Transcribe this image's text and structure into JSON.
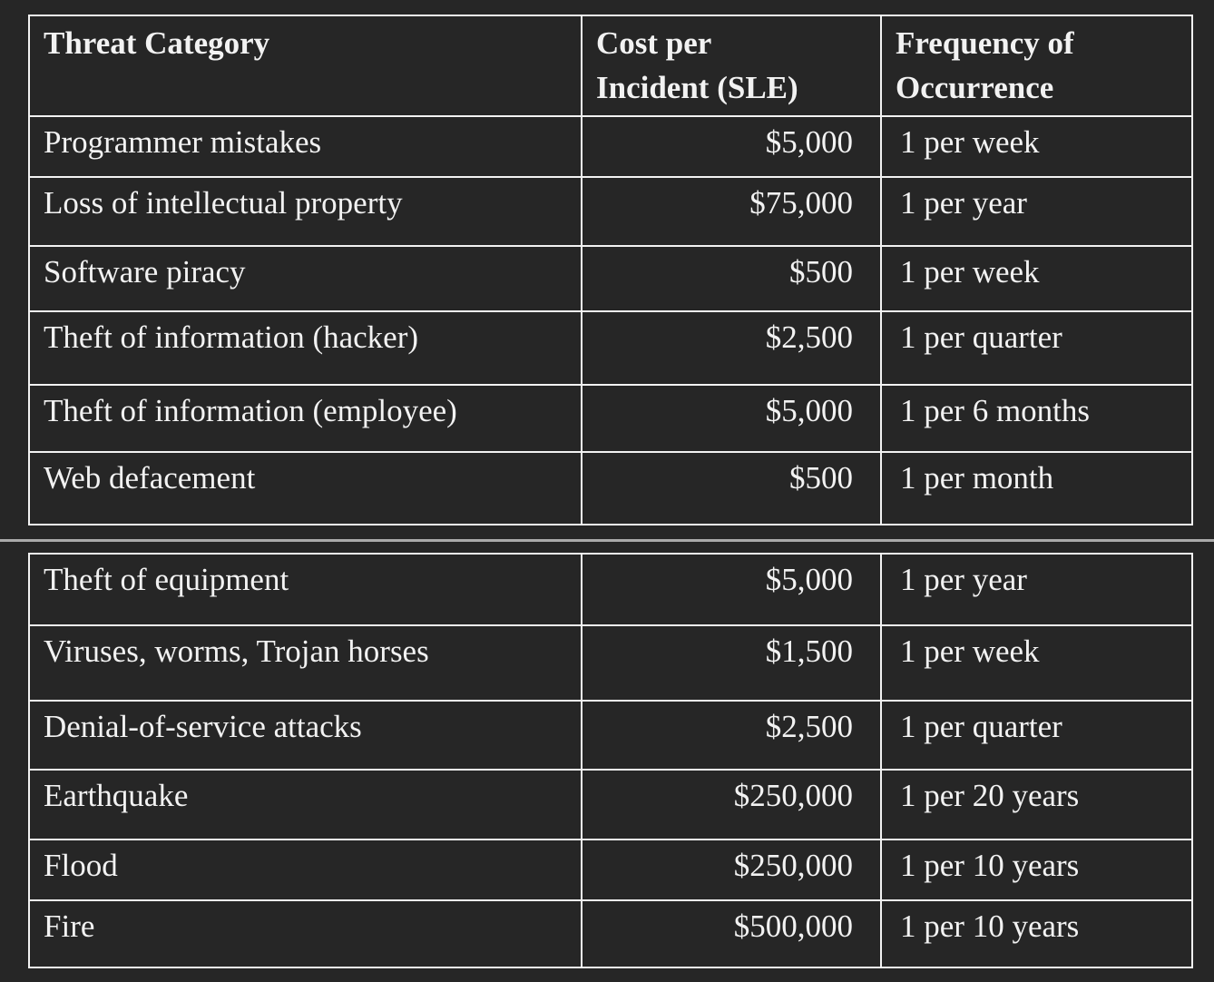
{
  "theme": {
    "background": "#262626",
    "text_color": "#f2f2f2",
    "border_color": "#f2f2f2",
    "divider_color": "#aaaaaa"
  },
  "table": {
    "columns": [
      "Threat Category",
      "Cost per\nIncident (SLE)",
      "Frequency of\nOccurrence"
    ],
    "sections": [
      {
        "rows": [
          {
            "category": "Programmer mistakes",
            "cost": "$5,000",
            "frequency": "1 per week"
          },
          {
            "category": "Loss of intellectual property",
            "cost": "$75,000",
            "frequency": "1 per year"
          },
          {
            "category": "Software piracy",
            "cost": "$500",
            "frequency": "1 per week"
          },
          {
            "category": "Theft of information (hacker)",
            "cost": "$2,500",
            "frequency": "1 per quarter"
          },
          {
            "category": "Theft of information (employee)",
            "cost": "$5,000",
            "frequency": "1 per 6 months"
          },
          {
            "category": "Web defacement",
            "cost": "$500",
            "frequency": "1 per month"
          }
        ]
      },
      {
        "rows": [
          {
            "category": "Theft of equipment",
            "cost": "$5,000",
            "frequency": "1 per year"
          },
          {
            "category": "Viruses, worms, Trojan horses",
            "cost": "$1,500",
            "frequency": "1 per week"
          },
          {
            "category": "Denial-of-service attacks",
            "cost": "$2,500",
            "frequency": "1 per quarter"
          },
          {
            "category": "Earthquake",
            "cost": "$250,000",
            "frequency": "1 per 20 years"
          },
          {
            "category": "Flood",
            "cost": "$250,000",
            "frequency": "1 per 10 years"
          },
          {
            "category": "Fire",
            "cost": "$500,000",
            "frequency": "1 per 10 years"
          }
        ]
      }
    ]
  }
}
